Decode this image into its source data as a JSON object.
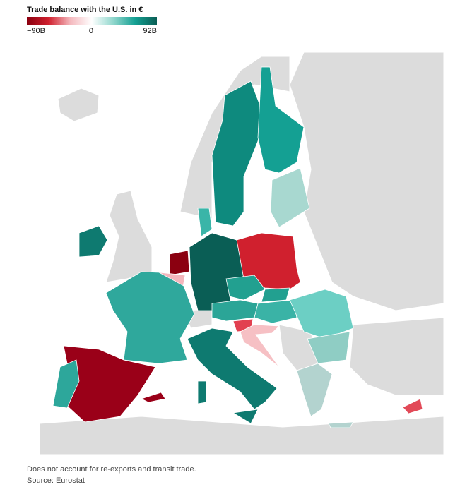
{
  "chart_data": {
    "type": "choropleth",
    "title": "Trade balance with the U.S. in €",
    "colors": [
      "#8b0010",
      "#d0202e",
      "#f4b8bd",
      "#ffffff",
      "#8fd6cc",
      "#14a093",
      "#0a5e55"
    ],
    "clim": [
      -90,
      92
    ],
    "cticks": [
      {
        "value": -90,
        "label": "−90B"
      },
      0,
      {
        "value": 92,
        "label": "92B"
      }
    ],
    "note": "Does not account for re-exports and transit trade.",
    "source": "Source: Eurostat"
  }
}
